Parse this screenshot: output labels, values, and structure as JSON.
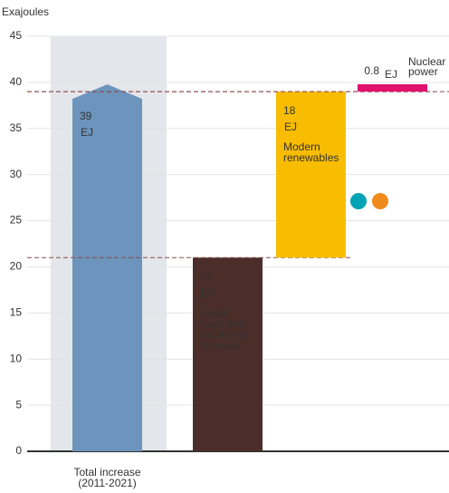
{
  "chart_data": {
    "type": "waterfall",
    "y_label": "Exajoules",
    "ylim": [
      0,
      45
    ],
    "yticks": [
      0,
      5,
      10,
      15,
      20,
      25,
      30,
      35,
      40,
      45
    ],
    "grid": true,
    "total": {
      "label_lines": [
        "Total increase",
        "(2011-2021)"
      ],
      "value": 39,
      "unit": "EJ",
      "color": "#6c94bd"
    },
    "steps": [
      {
        "name_lines": [
          "Fossil",
          "fuels and",
          "traditional",
          "biomass"
        ],
        "value": 21,
        "unit": "EJ",
        "color": "#4b2e2a"
      },
      {
        "name_lines": [
          "Modern",
          "renewables"
        ],
        "value": 18,
        "unit": "EJ",
        "color": "#f8bd00"
      },
      {
        "name_lines": [
          "Nuclear",
          "power"
        ],
        "value": 0.8,
        "unit": "EJ",
        "color": "#e0126c"
      }
    ]
  }
}
